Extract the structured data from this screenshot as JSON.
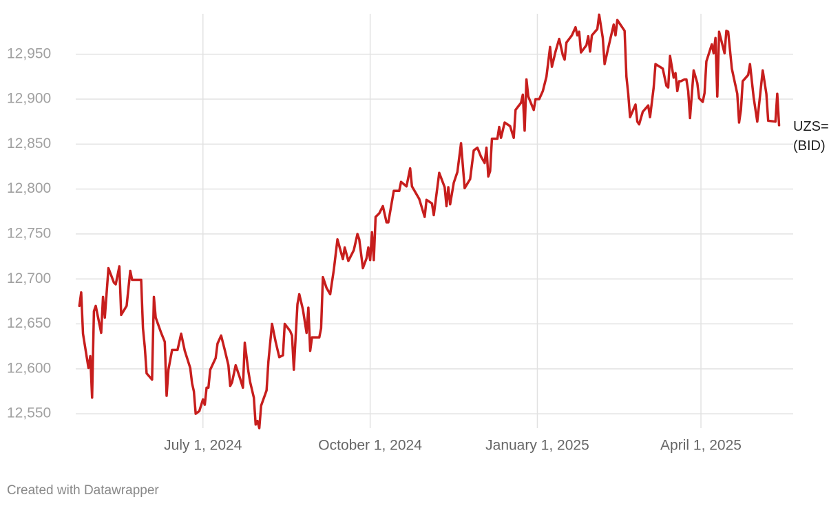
{
  "chart_data": {
    "type": "line",
    "x": [
      "2024-04-24",
      "2024-04-25",
      "2024-04-26",
      "2024-04-29",
      "2024-04-30",
      "2024-05-01",
      "2024-05-02",
      "2024-05-03",
      "2024-05-06",
      "2024-05-07",
      "2024-05-08",
      "2024-05-10",
      "2024-05-13",
      "2024-05-14",
      "2024-05-16",
      "2024-05-17",
      "2024-05-20",
      "2024-05-22",
      "2024-05-23",
      "2024-05-28",
      "2024-05-29",
      "2024-05-30",
      "2024-05-31",
      "2024-06-03",
      "2024-06-04",
      "2024-06-05",
      "2024-06-08",
      "2024-06-10",
      "2024-06-11",
      "2024-06-12",
      "2024-06-14",
      "2024-06-17",
      "2024-06-19",
      "2024-06-21",
      "2024-06-24",
      "2024-06-25",
      "2024-06-26",
      "2024-06-27",
      "2024-06-29",
      "2024-07-01",
      "2024-07-02",
      "2024-07-03",
      "2024-07-04",
      "2024-07-05",
      "2024-07-08",
      "2024-07-09",
      "2024-07-11",
      "2024-07-13",
      "2024-07-15",
      "2024-07-16",
      "2024-07-17",
      "2024-07-19",
      "2024-07-21",
      "2024-07-23",
      "2024-07-24",
      "2024-07-26",
      "2024-07-27",
      "2024-07-29",
      "2024-07-30",
      "2024-07-31",
      "2024-08-01",
      "2024-08-02",
      "2024-08-05",
      "2024-08-06",
      "2024-08-08",
      "2024-08-10",
      "2024-08-12",
      "2024-08-14",
      "2024-08-15",
      "2024-08-18",
      "2024-08-19",
      "2024-08-20",
      "2024-08-22",
      "2024-08-23",
      "2024-08-25",
      "2024-08-27",
      "2024-08-28",
      "2024-08-29",
      "2024-08-30",
      "2024-09-03",
      "2024-09-04",
      "2024-09-05",
      "2024-09-07",
      "2024-09-09",
      "2024-09-11",
      "2024-09-13",
      "2024-09-16",
      "2024-09-17",
      "2024-09-19",
      "2024-09-22",
      "2024-09-24",
      "2024-09-25",
      "2024-09-27",
      "2024-09-29",
      "2024-09-30",
      "2024-10-01",
      "2024-10-02",
      "2024-10-03",
      "2024-10-04",
      "2024-10-06",
      "2024-10-08",
      "2024-10-10",
      "2024-10-11",
      "2024-10-14",
      "2024-10-17",
      "2024-10-18",
      "2024-10-21",
      "2024-10-23",
      "2024-10-24",
      "2024-10-28",
      "2024-10-31",
      "2024-11-01",
      "2024-11-04",
      "2024-11-05",
      "2024-11-08",
      "2024-11-11",
      "2024-11-12",
      "2024-11-13",
      "2024-11-14",
      "2024-11-16",
      "2024-11-18",
      "2024-11-20",
      "2024-11-22",
      "2024-11-25",
      "2024-11-27",
      "2024-11-29",
      "2024-12-01",
      "2024-12-03",
      "2024-12-04",
      "2024-12-05",
      "2024-12-06",
      "2024-12-07",
      "2024-12-10",
      "2024-12-11",
      "2024-12-12",
      "2024-12-14",
      "2024-12-17",
      "2024-12-19",
      "2024-12-20",
      "2024-12-23",
      "2024-12-24",
      "2024-12-25",
      "2024-12-26",
      "2024-12-27",
      "2024-12-30",
      "2024-12-31",
      "2025-01-02",
      "2025-01-04",
      "2025-01-06",
      "2025-01-08",
      "2025-01-09",
      "2025-01-11",
      "2025-01-13",
      "2025-01-15",
      "2025-01-16",
      "2025-01-17",
      "2025-01-20",
      "2025-01-22",
      "2025-01-23",
      "2025-01-24",
      "2025-01-25",
      "2025-01-28",
      "2025-01-29",
      "2025-01-30",
      "2025-01-31",
      "2025-02-03",
      "2025-02-04",
      "2025-02-06",
      "2025-02-07",
      "2025-02-09",
      "2025-02-12",
      "2025-02-13",
      "2025-02-14",
      "2025-02-18",
      "2025-02-19",
      "2025-02-20",
      "2025-02-21",
      "2025-02-24",
      "2025-02-25",
      "2025-02-26",
      "2025-02-28",
      "2025-03-03",
      "2025-03-04",
      "2025-03-06",
      "2025-03-07",
      "2025-03-11",
      "2025-03-13",
      "2025-03-14",
      "2025-03-15",
      "2025-03-17",
      "2025-03-18",
      "2025-03-19",
      "2025-03-20",
      "2025-03-21",
      "2025-03-23",
      "2025-03-24",
      "2025-03-25",
      "2025-03-26",
      "2025-03-28",
      "2025-03-30",
      "2025-03-31",
      "2025-04-02",
      "2025-04-03",
      "2025-04-04",
      "2025-04-07",
      "2025-04-08",
      "2025-04-09",
      "2025-04-10",
      "2025-04-11",
      "2025-04-14",
      "2025-04-15",
      "2025-04-16",
      "2025-04-18",
      "2025-04-21",
      "2025-04-22",
      "2025-04-23",
      "2025-04-24",
      "2025-04-27",
      "2025-04-28",
      "2025-04-30",
      "2025-05-02",
      "2025-05-05",
      "2025-05-07",
      "2025-05-08",
      "2025-05-12",
      "2025-05-13",
      "2025-05-14"
    ],
    "series": [
      {
        "name": "UZS= (BID)",
        "color": "#c71e1d",
        "values": [
          12670,
          12685,
          12639,
          12601,
          12614,
          12568,
          12664,
          12670,
          12640,
          12680,
          12657,
          12712,
          12696,
          12694,
          12714,
          12660,
          12670,
          12709,
          12699,
          12699,
          12645,
          12624,
          12595,
          12588,
          12680,
          12657,
          12640,
          12630,
          12570,
          12599,
          12621,
          12621,
          12639,
          12620,
          12601,
          12584,
          12575,
          12550,
          12553,
          12566,
          12560,
          12579,
          12579,
          12599,
          12612,
          12628,
          12637,
          12621,
          12604,
          12581,
          12585,
          12604,
          12592,
          12579,
          12629,
          12597,
          12585,
          12568,
          12538,
          12542,
          12534,
          12559,
          12576,
          12608,
          12650,
          12630,
          12613,
          12615,
          12650,
          12642,
          12637,
          12599,
          12672,
          12683,
          12666,
          12640,
          12668,
          12620,
          12635,
          12635,
          12645,
          12702,
          12690,
          12683,
          12710,
          12744,
          12722,
          12735,
          12720,
          12732,
          12750,
          12744,
          12712,
          12723,
          12735,
          12721,
          12752,
          12721,
          12769,
          12773,
          12781,
          12763,
          12763,
          12798,
          12798,
          12808,
          12803,
          12823,
          12803,
          12789,
          12769,
          12788,
          12784,
          12771,
          12818,
          12802,
          12781,
          12802,
          12783,
          12807,
          12819,
          12851,
          12801,
          12811,
          12843,
          12846,
          12836,
          12829,
          12846,
          12814,
          12820,
          12856,
          12856,
          12869,
          12857,
          12874,
          12870,
          12857,
          12888,
          12896,
          12905,
          12865,
          12922,
          12903,
          12888,
          12900,
          12900,
          12909,
          12925,
          12958,
          12936,
          12953,
          12967,
          12949,
          12944,
          12963,
          12971,
          12980,
          12971,
          12975,
          12952,
          12960,
          12970,
          12953,
          12971,
          12978,
          12994,
          12968,
          12939,
          12957,
          12983,
          12971,
          12988,
          12976,
          12925,
          12906,
          12880,
          12894,
          12875,
          12872,
          12886,
          12893,
          12880,
          12913,
          12939,
          12934,
          12915,
          12913,
          12948,
          12924,
          12929,
          12909,
          12920,
          12920,
          12922,
          12922,
          12909,
          12879,
          12932,
          12918,
          12901,
          12897,
          12907,
          12942,
          12961,
          12951,
          12968,
          12903,
          12975,
          12951,
          12976,
          12975,
          12934,
          12906,
          12874,
          12888,
          12920,
          12927,
          12939,
          12902,
          12875,
          12932,
          12906,
          12876,
          12875,
          12906,
          12871
        ]
      }
    ],
    "xlim": [
      "2024-04-22",
      "2025-05-21"
    ],
    "xticks": [
      {
        "value": "2024-07-01",
        "label": "July 1, 2024"
      },
      {
        "value": "2024-10-01",
        "label": "October 1, 2024"
      },
      {
        "value": "2025-01-01",
        "label": "January 1, 2025"
      },
      {
        "value": "2025-04-01",
        "label": "April 1, 2025"
      }
    ],
    "ylim": [
      12534,
      12995
    ],
    "yticks": [
      {
        "value": 12550,
        "label": "12,550"
      },
      {
        "value": 12600,
        "label": "12,600"
      },
      {
        "value": 12650,
        "label": "12,650"
      },
      {
        "value": 12700,
        "label": "12,700"
      },
      {
        "value": 12750,
        "label": "12,750"
      },
      {
        "value": 12800,
        "label": "12,800"
      },
      {
        "value": 12850,
        "label": "12,850"
      },
      {
        "value": 12900,
        "label": "12,900"
      },
      {
        "value": 12950,
        "label": "12,950"
      }
    ],
    "grid": true,
    "credit": "Created with Datawrapper"
  }
}
